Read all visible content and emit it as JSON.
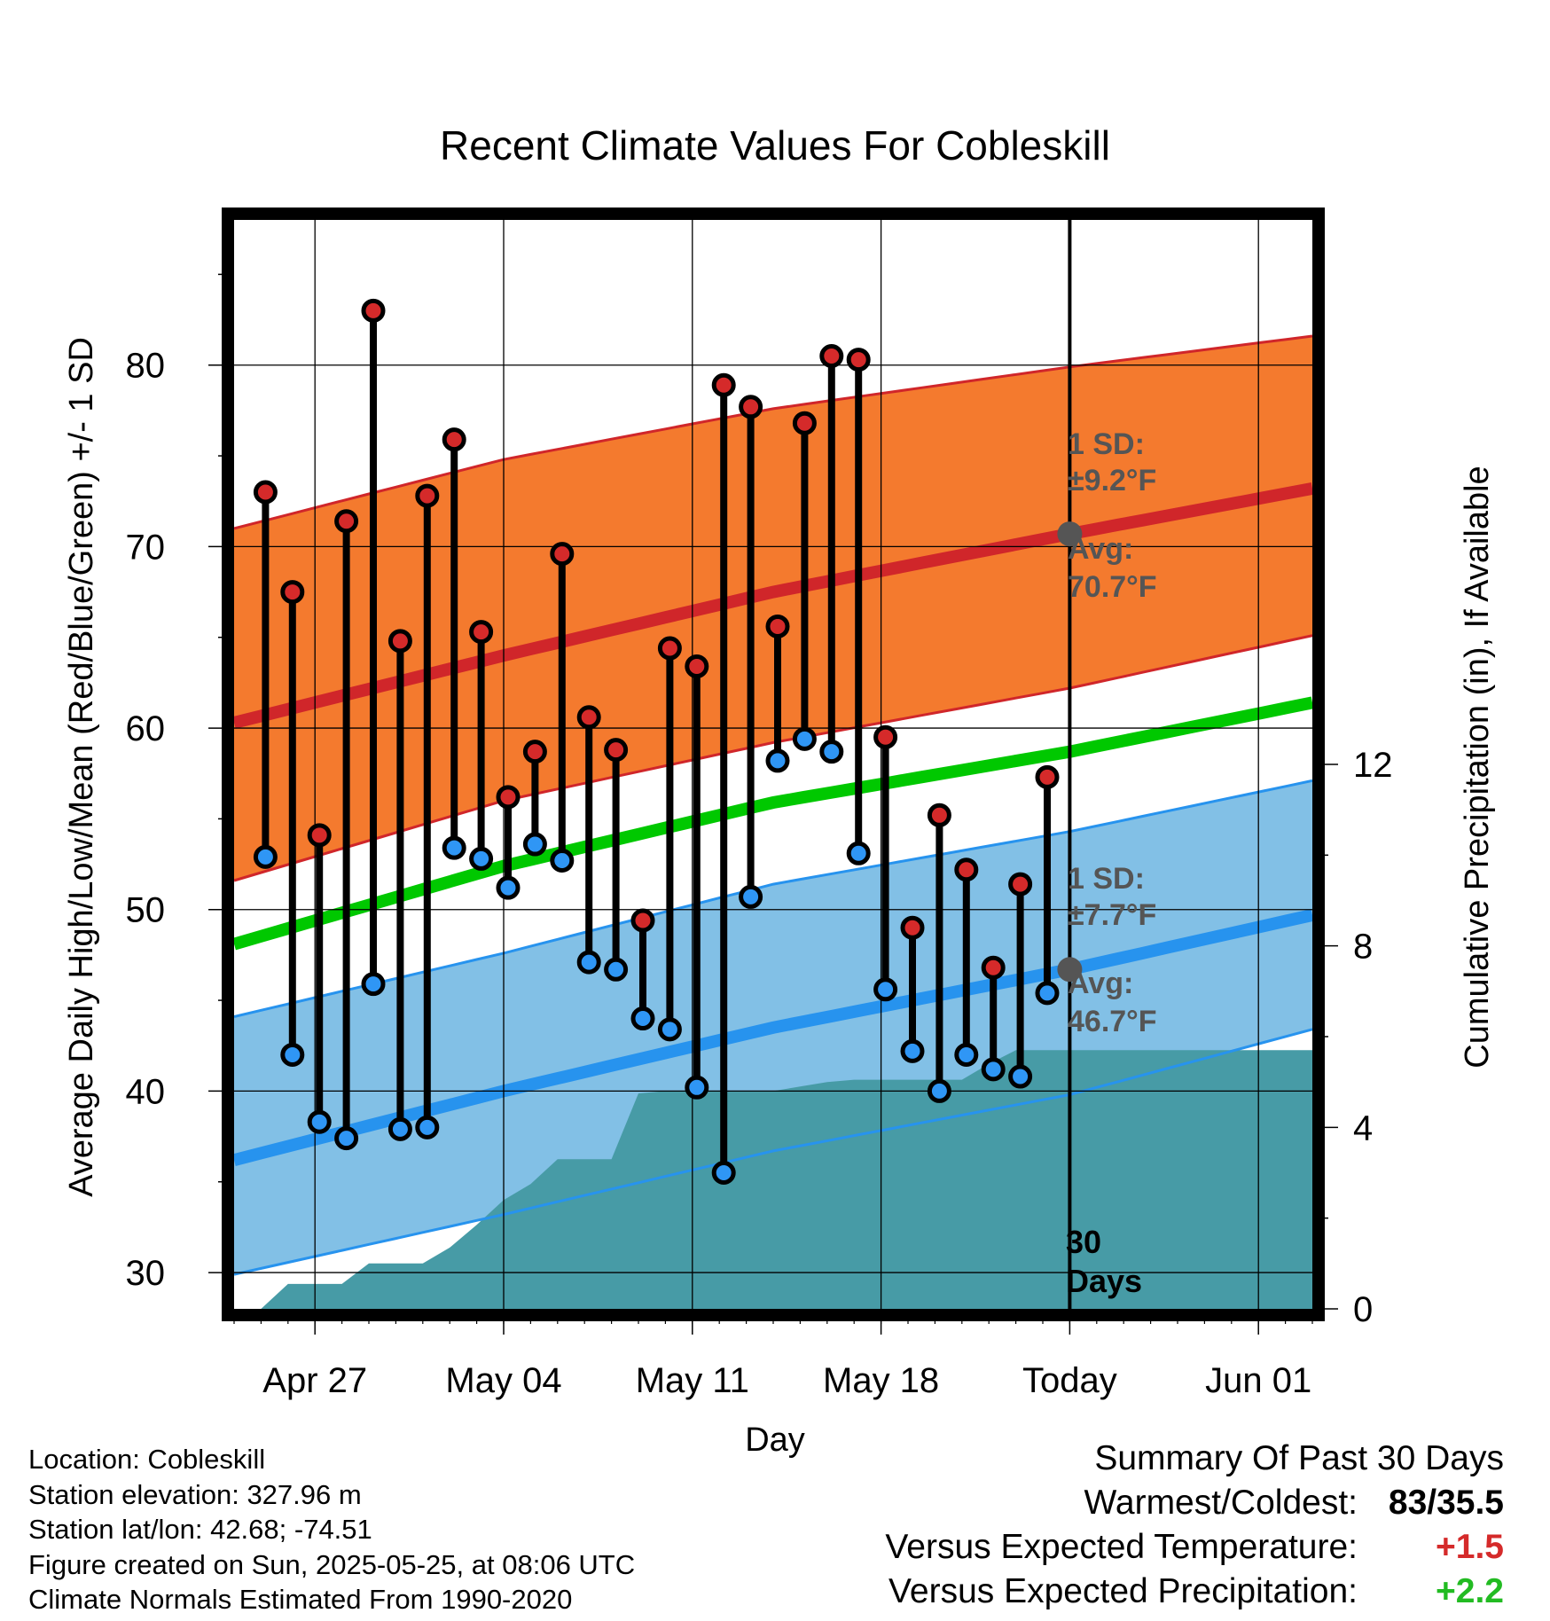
{
  "chart_data": {
    "type": "line",
    "title": "Recent Climate Values For Cobleskill",
    "xlabel": "Day",
    "ylabel": "Average Daily High/Low/Mean (Red/Blue/Green) +/- 1 SD",
    "y2label": "Cumulative Precipitation (in), If Available",
    "ylim": [
      28,
      88
    ],
    "y2lim": [
      0,
      24
    ],
    "xlim": [
      "2025-04-24",
      "2025-06-03"
    ],
    "x_ticks": [
      {
        "date": "2025-04-27",
        "label": "Apr 27"
      },
      {
        "date": "2025-05-04",
        "label": "May 04"
      },
      {
        "date": "2025-05-11",
        "label": "May 11"
      },
      {
        "date": "2025-05-18",
        "label": "May 18"
      },
      {
        "date": "2025-05-25",
        "label": "Today"
      },
      {
        "date": "2025-06-01",
        "label": "Jun 01"
      }
    ],
    "y_ticks": [
      30,
      40,
      50,
      60,
      70,
      80
    ],
    "y2_ticks": [
      0,
      4,
      8,
      12
    ],
    "grid": true,
    "today": "2025-05-25",
    "today_label": [
      "30",
      "Days"
    ],
    "colors": {
      "high_band": "#f47a2e",
      "high_line": "#d0262a",
      "low_band": "#82c0e6",
      "low_line": "#2793ee",
      "mean_line": "#00c800",
      "precip": "#479ba6",
      "high_point": "#d52a2a",
      "low_point": "#2f96f5",
      "avg_marker": "#555555",
      "annotation": "#555555"
    },
    "normals": {
      "x": [
        "2025-04-24",
        "2025-05-04",
        "2025-05-14",
        "2025-05-25",
        "2025-06-03"
      ],
      "high_avg": [
        60.3,
        64.0,
        67.5,
        70.7,
        73.2
      ],
      "high_upper": [
        71.0,
        74.8,
        77.6,
        79.9,
        81.6
      ],
      "high_lower": [
        51.6,
        56.0,
        59.2,
        62.2,
        65.1
      ],
      "mean": [
        48.1,
        52.4,
        55.9,
        58.7,
        61.4
      ],
      "low_avg": [
        36.2,
        40.0,
        43.5,
        46.7,
        49.7
      ],
      "low_upper": [
        44.1,
        47.6,
        51.4,
        54.3,
        57.1
      ],
      "low_lower": [
        29.9,
        33.2,
        36.7,
        39.8,
        43.4
      ]
    },
    "annotations": {
      "high_sd": {
        "label": "1 SD:",
        "value": "±9.2°F"
      },
      "high_avg": {
        "label": "Avg:",
        "value": "70.7°F"
      },
      "low_sd": {
        "label": "1 SD:",
        "value": "±7.7°F"
      },
      "low_avg": {
        "label": "Avg:",
        "value": "46.7°F"
      }
    },
    "daily": {
      "dates": [
        "2025-04-25",
        "2025-04-26",
        "2025-04-27",
        "2025-04-28",
        "2025-04-29",
        "2025-04-30",
        "2025-05-01",
        "2025-05-02",
        "2025-05-03",
        "2025-05-04",
        "2025-05-05",
        "2025-05-06",
        "2025-05-07",
        "2025-05-08",
        "2025-05-09",
        "2025-05-10",
        "2025-05-11",
        "2025-05-12",
        "2025-05-13",
        "2025-05-14",
        "2025-05-15",
        "2025-05-16",
        "2025-05-17",
        "2025-05-18",
        "2025-05-19",
        "2025-05-20",
        "2025-05-21",
        "2025-05-22",
        "2025-05-23",
        "2025-05-24"
      ],
      "high": [
        73.0,
        67.5,
        54.1,
        71.4,
        83.0,
        64.8,
        72.8,
        75.9,
        65.3,
        56.2,
        58.7,
        69.6,
        60.6,
        58.8,
        49.4,
        64.4,
        63.4,
        78.9,
        77.7,
        65.6,
        76.8,
        80.5,
        80.3,
        59.5,
        49.0,
        55.2,
        52.2,
        46.8,
        51.4,
        57.3
      ],
      "low": [
        52.9,
        42.0,
        38.3,
        37.4,
        45.9,
        37.9,
        38.0,
        53.4,
        52.8,
        51.2,
        53.6,
        52.7,
        47.1,
        46.7,
        44.0,
        43.4,
        40.2,
        35.5,
        50.7,
        58.2,
        59.4,
        58.7,
        53.1,
        45.6,
        42.2,
        40.0,
        42.0,
        41.2,
        40.8,
        45.4
      ]
    },
    "precip": {
      "x": [
        "2025-04-25",
        "2025-04-26",
        "2025-04-27",
        "2025-04-28",
        "2025-04-29",
        "2025-04-30",
        "2025-05-01",
        "2025-05-02",
        "2025-05-03",
        "2025-05-04",
        "2025-05-05",
        "2025-05-06",
        "2025-05-07",
        "2025-05-08",
        "2025-05-09",
        "2025-05-10",
        "2025-05-11",
        "2025-05-12",
        "2025-05-13",
        "2025-05-14",
        "2025-05-15",
        "2025-05-16",
        "2025-05-17",
        "2025-05-18",
        "2025-05-19",
        "2025-05-20",
        "2025-05-21",
        "2025-05-22",
        "2025-05-23",
        "2025-05-24",
        "2025-05-25",
        "2025-06-03"
      ],
      "values": [
        0.0,
        0.55,
        0.55,
        0.55,
        1.0,
        1.0,
        1.0,
        1.35,
        1.85,
        2.4,
        2.75,
        3.3,
        3.3,
        3.3,
        4.75,
        4.8,
        4.8,
        4.8,
        4.8,
        4.8,
        4.9,
        5.0,
        5.05,
        5.05,
        5.05,
        5.05,
        5.05,
        5.4,
        5.7,
        5.7,
        5.7,
        5.7
      ]
    }
  },
  "footer": {
    "location": "Location: Cobleskill",
    "elevation": "Station elevation: 327.96 m",
    "latlon": "Station lat/lon: 42.68; -74.51",
    "created": "Figure created on Sun, 2025-05-25, at 08:06 UTC",
    "normals": "Climate Normals Estimated From 1990-2020"
  },
  "summary": {
    "title": "Summary Of Past 30 Days",
    "warm_cold_label": "Warmest/Coldest:",
    "warm_cold_value": "83/35.5",
    "temp_label": "Versus Expected Temperature:",
    "temp_value": "+1.5",
    "temp_color": "#d52a2a",
    "precip_label": "Versus Expected Precipitation:",
    "precip_value": "+2.2",
    "precip_color": "#22bb22"
  }
}
